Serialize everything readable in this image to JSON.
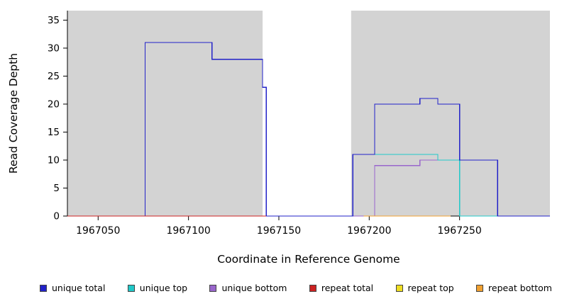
{
  "chart_data": {
    "type": "line",
    "subtype": "step-coverage",
    "title": "",
    "xlabel": "Coordinate in Reference Genome",
    "ylabel": "Read Coverage Depth",
    "xlim": [
      1967033,
      1967300
    ],
    "ylim": [
      0,
      36.7
    ],
    "x_ticks": [
      1967050,
      1967100,
      1967150,
      1967200,
      1967250
    ],
    "y_ticks": [
      0,
      5,
      10,
      15,
      20,
      25,
      30,
      35
    ],
    "grid": false,
    "plot_background": "#FFFFFF",
    "shaded_regions": [
      {
        "x0": 1967033,
        "x1": 1967141,
        "color": "#D3D3D3"
      },
      {
        "x0": 1967190,
        "x1": 1967300,
        "color": "#D3D3D3"
      }
    ],
    "series": [
      {
        "name": "unique total",
        "color": "#2222C8",
        "points": [
          [
            1967033,
            0
          ],
          [
            1967076,
            31
          ],
          [
            1967113,
            28
          ],
          [
            1967141,
            23
          ],
          [
            1967143,
            0
          ],
          [
            1967191,
            11
          ],
          [
            1967203,
            20
          ],
          [
            1967228,
            21
          ],
          [
            1967238,
            20
          ],
          [
            1967250,
            10
          ],
          [
            1967271,
            0
          ]
        ],
        "xend": 1967300
      },
      {
        "name": "unique top",
        "color": "#20C8C8",
        "points": [
          [
            1967033,
            0
          ],
          [
            1967076,
            31
          ],
          [
            1967113,
            28
          ],
          [
            1967141,
            23
          ],
          [
            1967143,
            0
          ],
          [
            1967191,
            11
          ],
          [
            1967238,
            10
          ],
          [
            1967250,
            0
          ]
        ],
        "xend": 1967300
      },
      {
        "name": "unique bottom",
        "color": "#9966CC",
        "points": [
          [
            1967033,
            0
          ],
          [
            1967203,
            9
          ],
          [
            1967228,
            10
          ],
          [
            1967271,
            0
          ]
        ],
        "xend": 1967300
      },
      {
        "name": "repeat total",
        "color": "#CC2222",
        "points": [
          [
            1967033,
            0
          ]
        ],
        "xend": 1967143
      },
      {
        "name": "repeat top",
        "color": "#EEDD22",
        "points": [
          [
            1967197,
            0
          ]
        ],
        "xend": 1967245
      },
      {
        "name": "repeat bottom",
        "color": "#F0A030",
        "points": [
          [
            1967197,
            0
          ]
        ],
        "xend": 1967245
      }
    ],
    "draw_order": [
      4,
      2,
      1,
      0,
      3,
      5
    ],
    "legend": {
      "position": "bottom"
    }
  }
}
